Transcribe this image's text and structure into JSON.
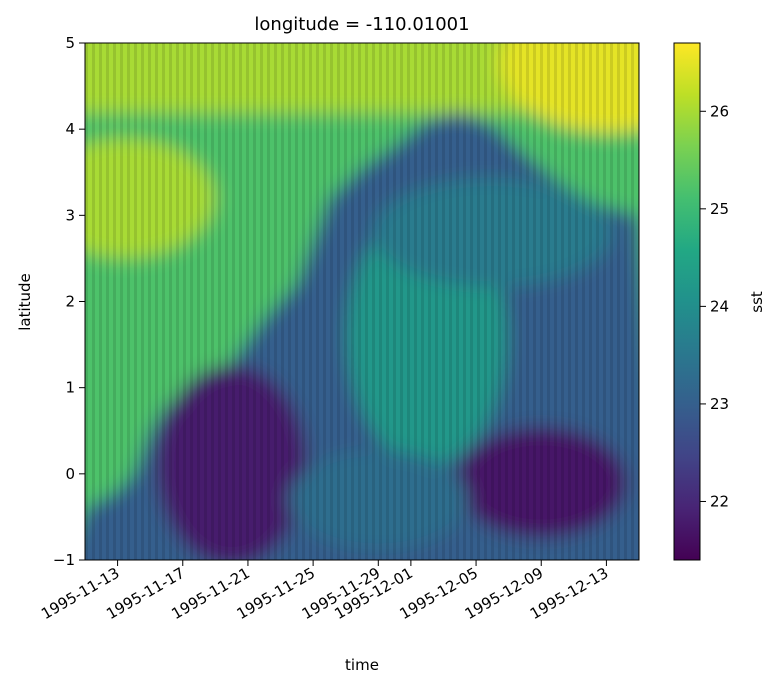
{
  "chart_data": {
    "type": "heatmap",
    "title": "longitude = -110.01001",
    "xlabel": "time",
    "ylabel": "latitude",
    "colorbar_label": "sst",
    "colormap": "viridis",
    "x_range": [
      "1995-11-11",
      "1995-12-15"
    ],
    "y_range": [
      -1,
      5
    ],
    "color_range": [
      21.4,
      26.7
    ],
    "x_ticks": [
      "1995-11-13",
      "1995-11-17",
      "1995-11-21",
      "1995-11-25",
      "1995-11-29",
      "1995-12-01",
      "1995-12-05",
      "1995-12-09",
      "1995-12-13"
    ],
    "y_ticks": [
      -1,
      0,
      1,
      2,
      3,
      4,
      5
    ],
    "colorbar_ticks": [
      22,
      23,
      24,
      25,
      26
    ],
    "contours": [
      {
        "value": 23.2,
        "points": [
          [
            "1995-11-11",
            -0.4
          ],
          [
            "1995-11-13",
            -0.2
          ],
          [
            "1995-11-14",
            0.0
          ],
          [
            "1995-11-15",
            0.5
          ],
          [
            "1995-11-16",
            0.8
          ],
          [
            "1995-11-18",
            0.95
          ],
          [
            "1995-11-20",
            1.3
          ],
          [
            "1995-11-22",
            1.8
          ],
          [
            "1995-11-24",
            2.2
          ],
          [
            "1995-11-25",
            2.7
          ],
          [
            "1995-11-26",
            3.2
          ],
          [
            "1995-11-28",
            3.55
          ],
          [
            "1995-11-30",
            3.8
          ],
          [
            "1995-12-02",
            4.1
          ],
          [
            "1995-12-04",
            4.2
          ],
          [
            "1995-12-06",
            4.05
          ],
          [
            "1995-12-08",
            3.7
          ],
          [
            "1995-12-10",
            3.4
          ],
          [
            "1995-12-12",
            3.15
          ],
          [
            "1995-12-15",
            3.0
          ]
        ]
      }
    ]
  }
}
